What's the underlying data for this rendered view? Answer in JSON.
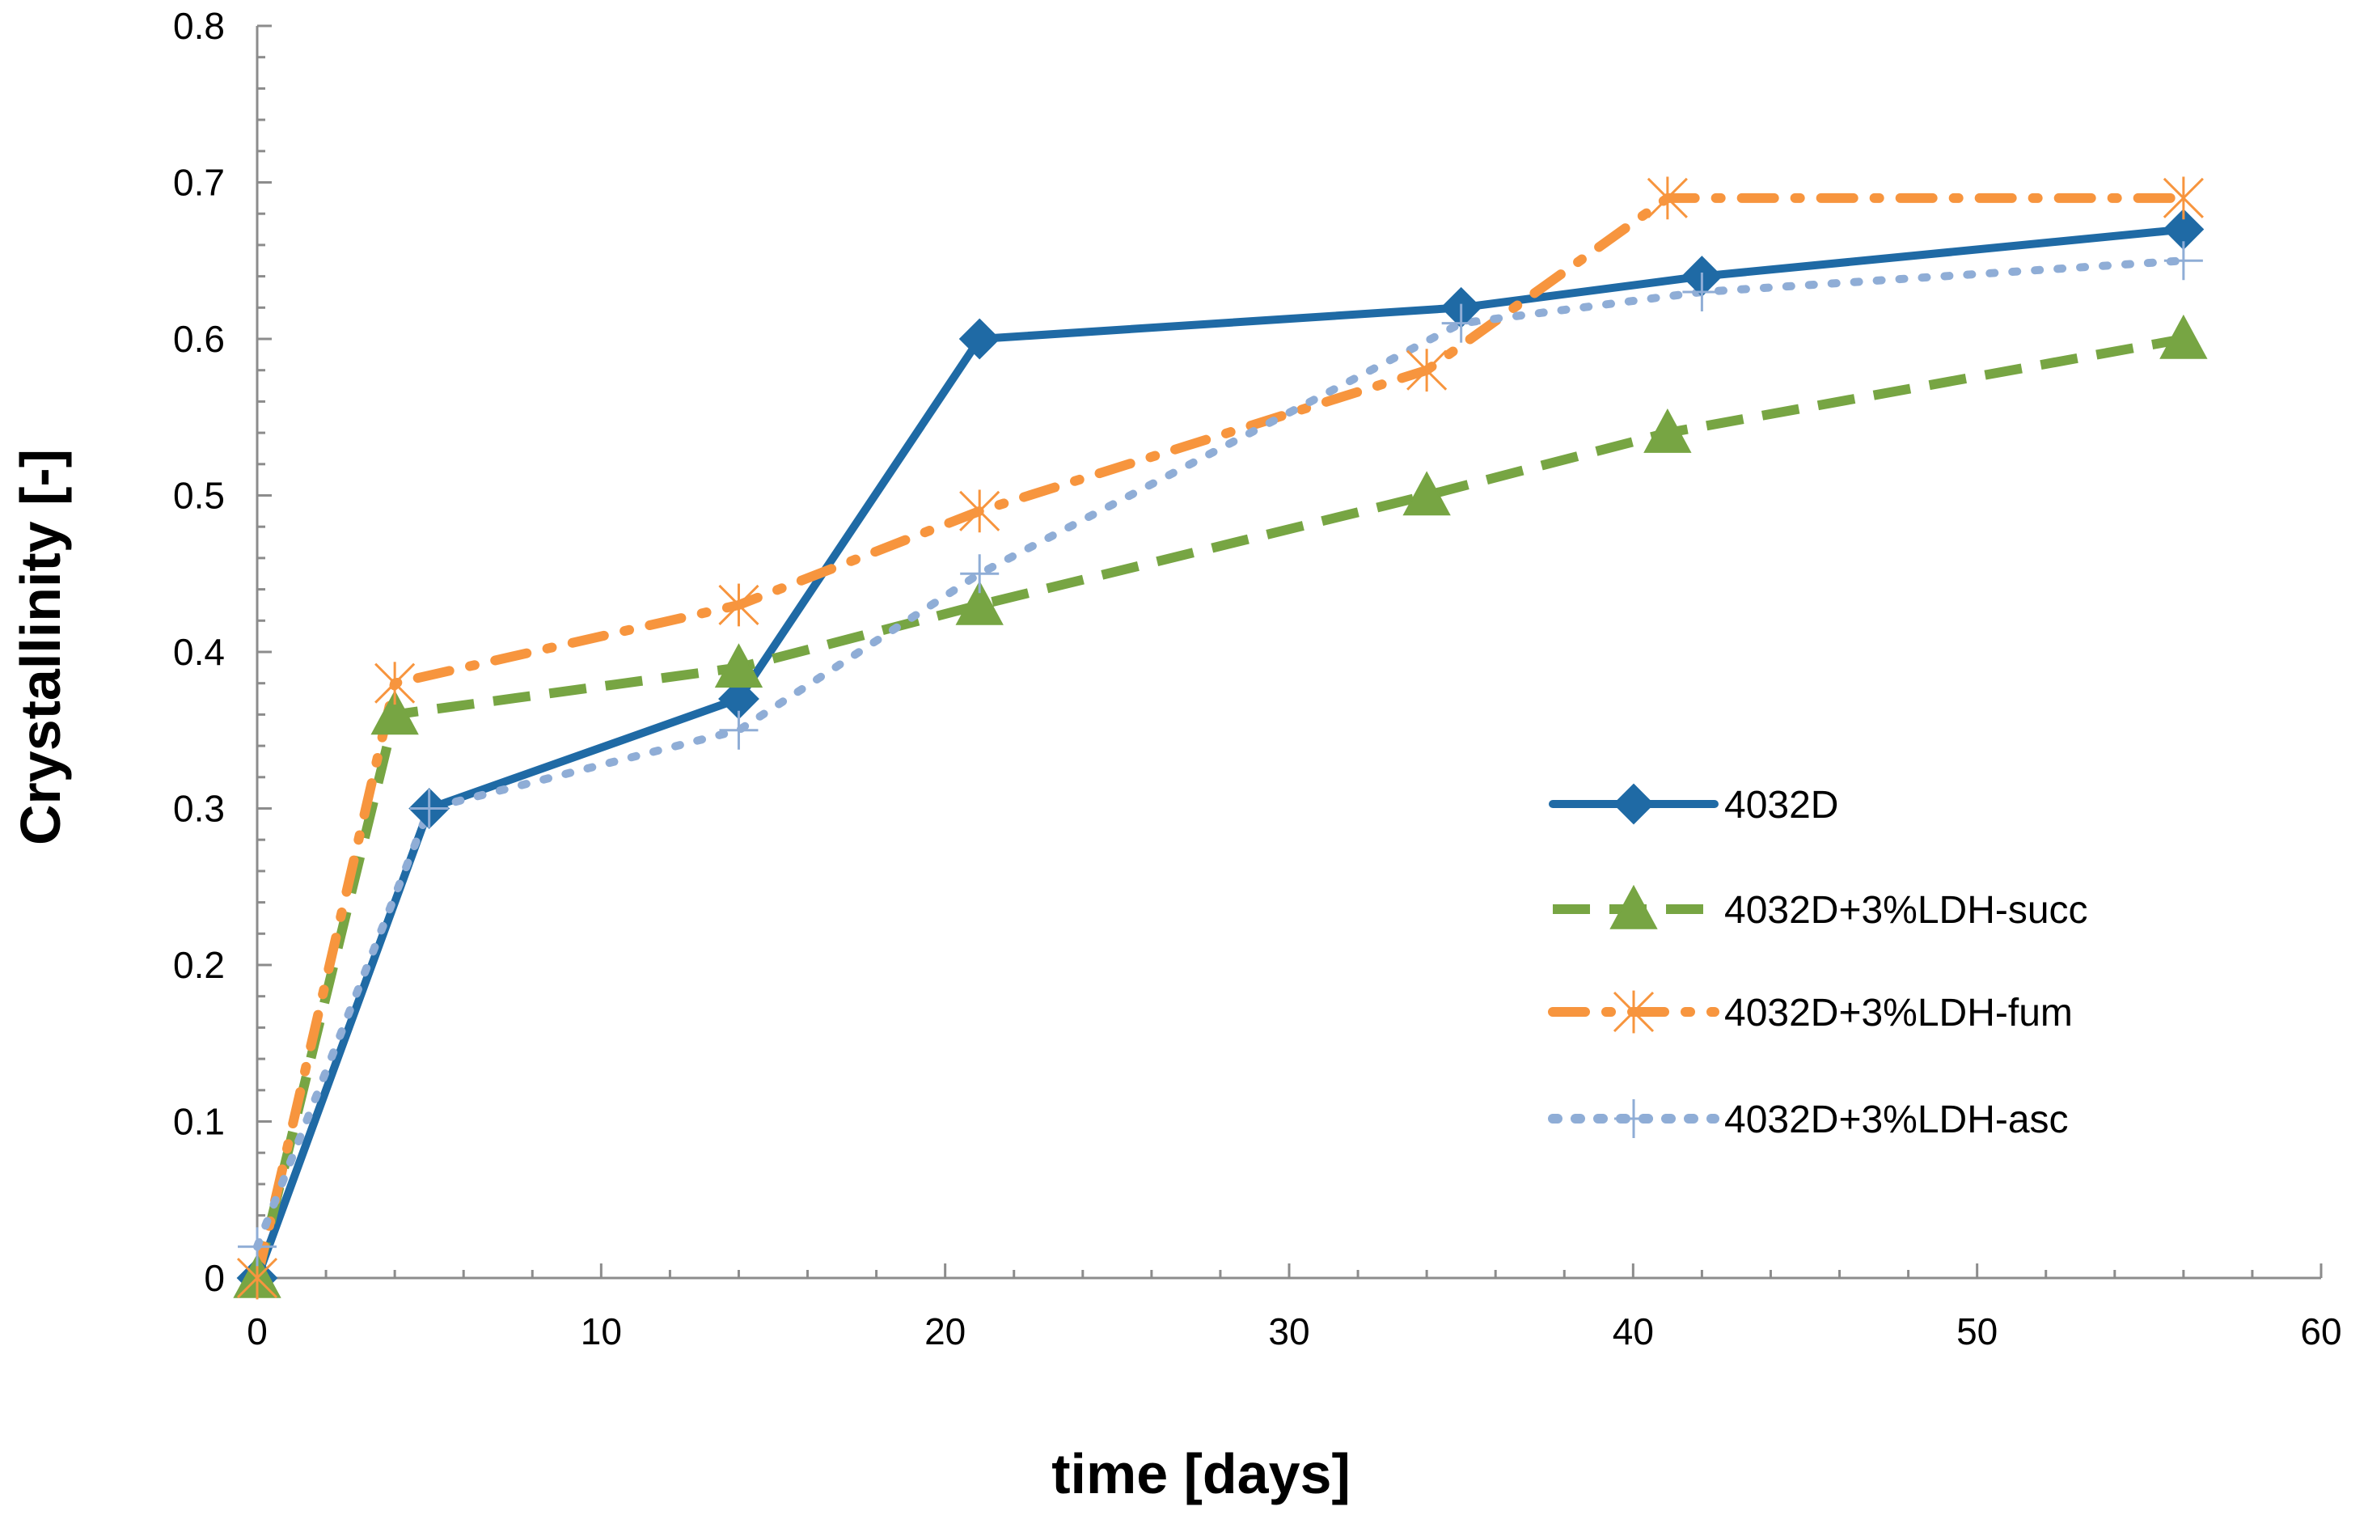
{
  "chart_data": {
    "type": "line",
    "title": "",
    "xlabel": "time [days]",
    "ylabel": "Crystallinity [-]",
    "xlim": [
      0,
      60
    ],
    "ylim": [
      0,
      0.8
    ],
    "x_ticks": [
      0,
      10,
      20,
      30,
      40,
      50,
      60
    ],
    "x_tick_labels": [
      "0",
      "10",
      "20",
      "30",
      "40",
      "50",
      "60"
    ],
    "y_ticks": [
      0,
      0.1,
      0.2,
      0.3,
      0.4,
      0.5,
      0.6,
      0.7,
      0.8
    ],
    "y_tick_labels": [
      "0",
      "0.1",
      "0.2",
      "0.3",
      "0.4",
      "0.5",
      "0.6",
      "0.7",
      "0.8"
    ],
    "grid": false,
    "legend_position": "right",
    "series": [
      {
        "name": "4032D",
        "color": "#1f6aa5",
        "style": "solid",
        "marker": "diamond",
        "points": [
          [
            0,
            0
          ],
          [
            5,
            0.3
          ],
          [
            14,
            0.37
          ],
          [
            21,
            0.6
          ],
          [
            35,
            0.62
          ],
          [
            42,
            0.64
          ],
          [
            56,
            0.67
          ]
        ]
      },
      {
        "name": "4032D+3%LDH-succ",
        "color": "#77a543",
        "style": "dash",
        "marker": "triangle",
        "points": [
          [
            0,
            0
          ],
          [
            4,
            0.36
          ],
          [
            14,
            0.39
          ],
          [
            21,
            0.43
          ],
          [
            34,
            0.5
          ],
          [
            41,
            0.54
          ],
          [
            56,
            0.6
          ]
        ]
      },
      {
        "name": "4032D+3%LDH-fum",
        "color": "#f7953e",
        "style": "dashdot",
        "marker": "asterisk",
        "points": [
          [
            0,
            0
          ],
          [
            4,
            0.38
          ],
          [
            14,
            0.43
          ],
          [
            21,
            0.49
          ],
          [
            34,
            0.58
          ],
          [
            41,
            0.69
          ],
          [
            56,
            0.69
          ]
        ]
      },
      {
        "name": "4032D+3%LDH-asc",
        "color": "#8fadd6",
        "style": "dot",
        "marker": "plus",
        "points": [
          [
            0,
            0.02
          ],
          [
            5,
            0.3
          ],
          [
            14,
            0.35
          ],
          [
            21,
            0.45
          ],
          [
            35,
            0.61
          ],
          [
            42,
            0.63
          ],
          [
            56,
            0.65
          ]
        ]
      }
    ]
  }
}
